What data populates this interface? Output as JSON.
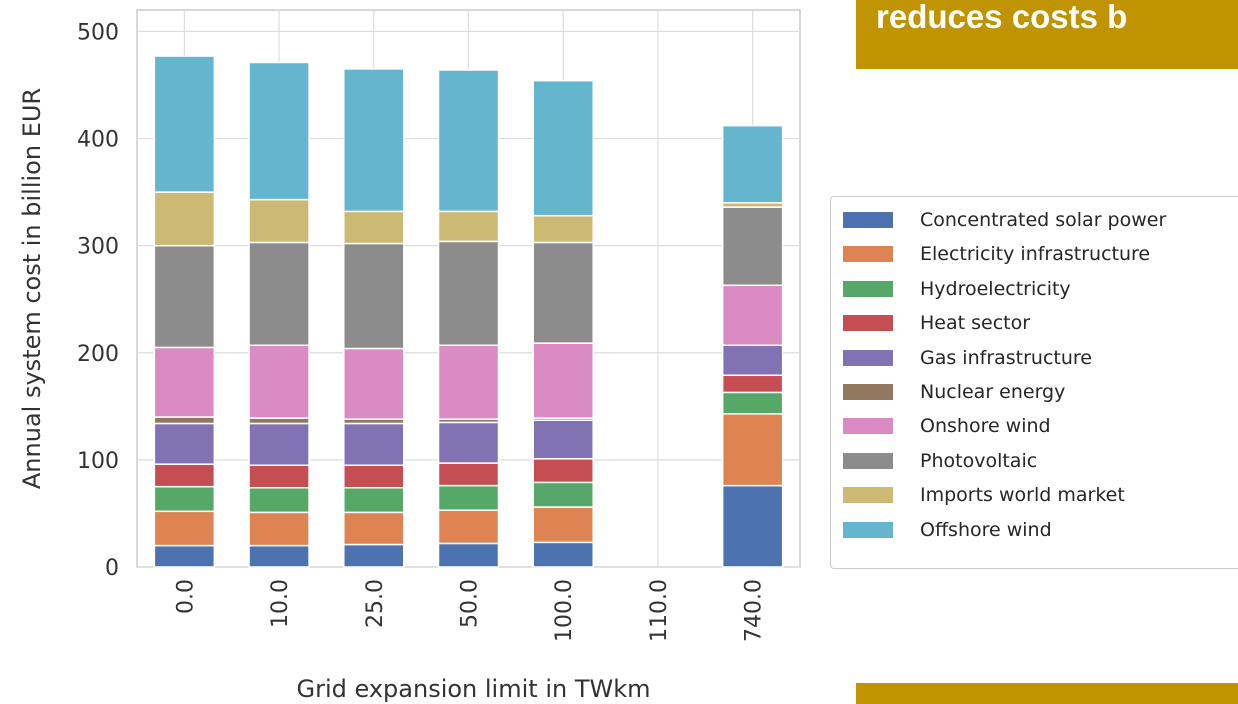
{
  "banner": {
    "text": "reduces costs b"
  },
  "chart_data": {
    "type": "bar",
    "stacked": true,
    "categories": [
      "0.0",
      "10.0",
      "25.0",
      "50.0",
      "100.0",
      "110.0",
      "740.0"
    ],
    "xlabel": "Grid expansion limit in TWkm",
    "ylabel": "Annual system cost in billion EUR",
    "ylim": [
      0,
      520
    ],
    "yticks": [
      0,
      100,
      200,
      300,
      400,
      500
    ],
    "grid": true,
    "legend_position": "right",
    "series": [
      {
        "name": "Concentrated solar power",
        "color": "#4c72b0",
        "values": [
          20,
          20,
          21,
          22,
          23,
          0,
          76
        ]
      },
      {
        "name": "Electricity infrastructure",
        "color": "#dd8452",
        "values": [
          32,
          31,
          30,
          31,
          33,
          0,
          67
        ]
      },
      {
        "name": "Hydroelectricity",
        "color": "#55a868",
        "values": [
          23,
          23,
          23,
          23,
          23,
          0,
          20
        ]
      },
      {
        "name": "Heat sector",
        "color": "#c44e52",
        "values": [
          21,
          21,
          21,
          21,
          22,
          0,
          16
        ]
      },
      {
        "name": "Gas infrastructure",
        "color": "#8172b3",
        "values": [
          38,
          39,
          39,
          38,
          36,
          0,
          28
        ]
      },
      {
        "name": "Nuclear energy",
        "color": "#937860",
        "values": [
          6,
          5,
          4,
          3,
          2,
          0,
          0
        ]
      },
      {
        "name": "Onshore wind",
        "color": "#da8bc3",
        "values": [
          65,
          68,
          66,
          69,
          70,
          0,
          56
        ]
      },
      {
        "name": "Photovoltaic",
        "color": "#8c8c8c",
        "values": [
          95,
          96,
          98,
          97,
          94,
          0,
          73
        ]
      },
      {
        "name": "Imports world market",
        "color": "#ccb974",
        "values": [
          50,
          40,
          30,
          28,
          25,
          0,
          4
        ]
      },
      {
        "name": "Offshore wind",
        "color": "#64b5cd",
        "values": [
          127,
          128,
          133,
          132,
          126,
          0,
          72
        ]
      }
    ]
  }
}
